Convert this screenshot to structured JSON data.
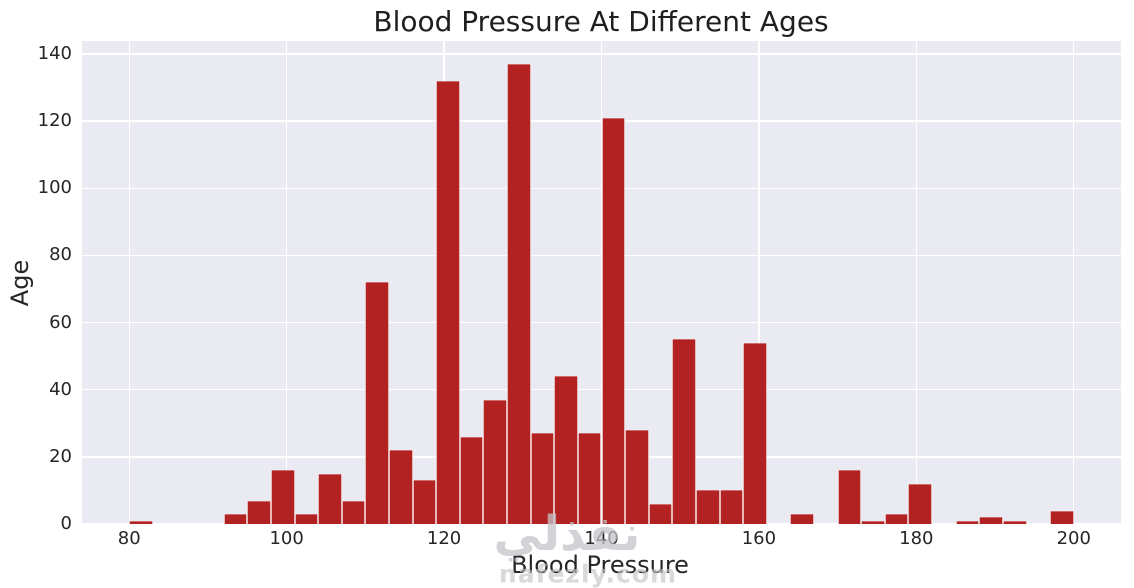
{
  "title": "Blood Pressure At Different Ages",
  "axes": {
    "xlabel": "Blood Pressure",
    "ylabel": "Age"
  },
  "watermark": {
    "arabic_text": "نفذلي",
    "site_text": "nafezly.com"
  },
  "colors": {
    "bar": "#b22222",
    "plot_background": "#eaeaf2",
    "grid": "#ffffff",
    "text": "#262626",
    "watermark": "#c5c5ca"
  },
  "chart_data": {
    "type": "bar",
    "subtype": "histogram",
    "title": "Blood Pressure At Different Ages",
    "xlabel": "Blood Pressure",
    "ylabel": "Age",
    "xlim": [
      74,
      206
    ],
    "ylim": [
      0,
      143.85
    ],
    "grid": true,
    "legend": false,
    "bin_width": 3,
    "xticks": [
      80,
      100,
      120,
      140,
      160,
      180,
      200
    ],
    "yticks": [
      0,
      20,
      40,
      60,
      80,
      100,
      120,
      140
    ],
    "bars": [
      {
        "bin_start": 80,
        "count": 1
      },
      {
        "bin_start": 92,
        "count": 3
      },
      {
        "bin_start": 95,
        "count": 7
      },
      {
        "bin_start": 98,
        "count": 16
      },
      {
        "bin_start": 101,
        "count": 3
      },
      {
        "bin_start": 104,
        "count": 15
      },
      {
        "bin_start": 107,
        "count": 7
      },
      {
        "bin_start": 110,
        "count": 72
      },
      {
        "bin_start": 113,
        "count": 22
      },
      {
        "bin_start": 116,
        "count": 13
      },
      {
        "bin_start": 119,
        "count": 132
      },
      {
        "bin_start": 122,
        "count": 26
      },
      {
        "bin_start": 125,
        "count": 37
      },
      {
        "bin_start": 128,
        "count": 137
      },
      {
        "bin_start": 131,
        "count": 27
      },
      {
        "bin_start": 134,
        "count": 44
      },
      {
        "bin_start": 137,
        "count": 27
      },
      {
        "bin_start": 140,
        "count": 121
      },
      {
        "bin_start": 143,
        "count": 28
      },
      {
        "bin_start": 146,
        "count": 6
      },
      {
        "bin_start": 149,
        "count": 55
      },
      {
        "bin_start": 152,
        "count": 10
      },
      {
        "bin_start": 155,
        "count": 10
      },
      {
        "bin_start": 158,
        "count": 54
      },
      {
        "bin_start": 164,
        "count": 3
      },
      {
        "bin_start": 170,
        "count": 16
      },
      {
        "bin_start": 173,
        "count": 1
      },
      {
        "bin_start": 176,
        "count": 3
      },
      {
        "bin_start": 179,
        "count": 12
      },
      {
        "bin_start": 185,
        "count": 1
      },
      {
        "bin_start": 188,
        "count": 2
      },
      {
        "bin_start": 191,
        "count": 1
      },
      {
        "bin_start": 197,
        "count": 4
      }
    ]
  }
}
